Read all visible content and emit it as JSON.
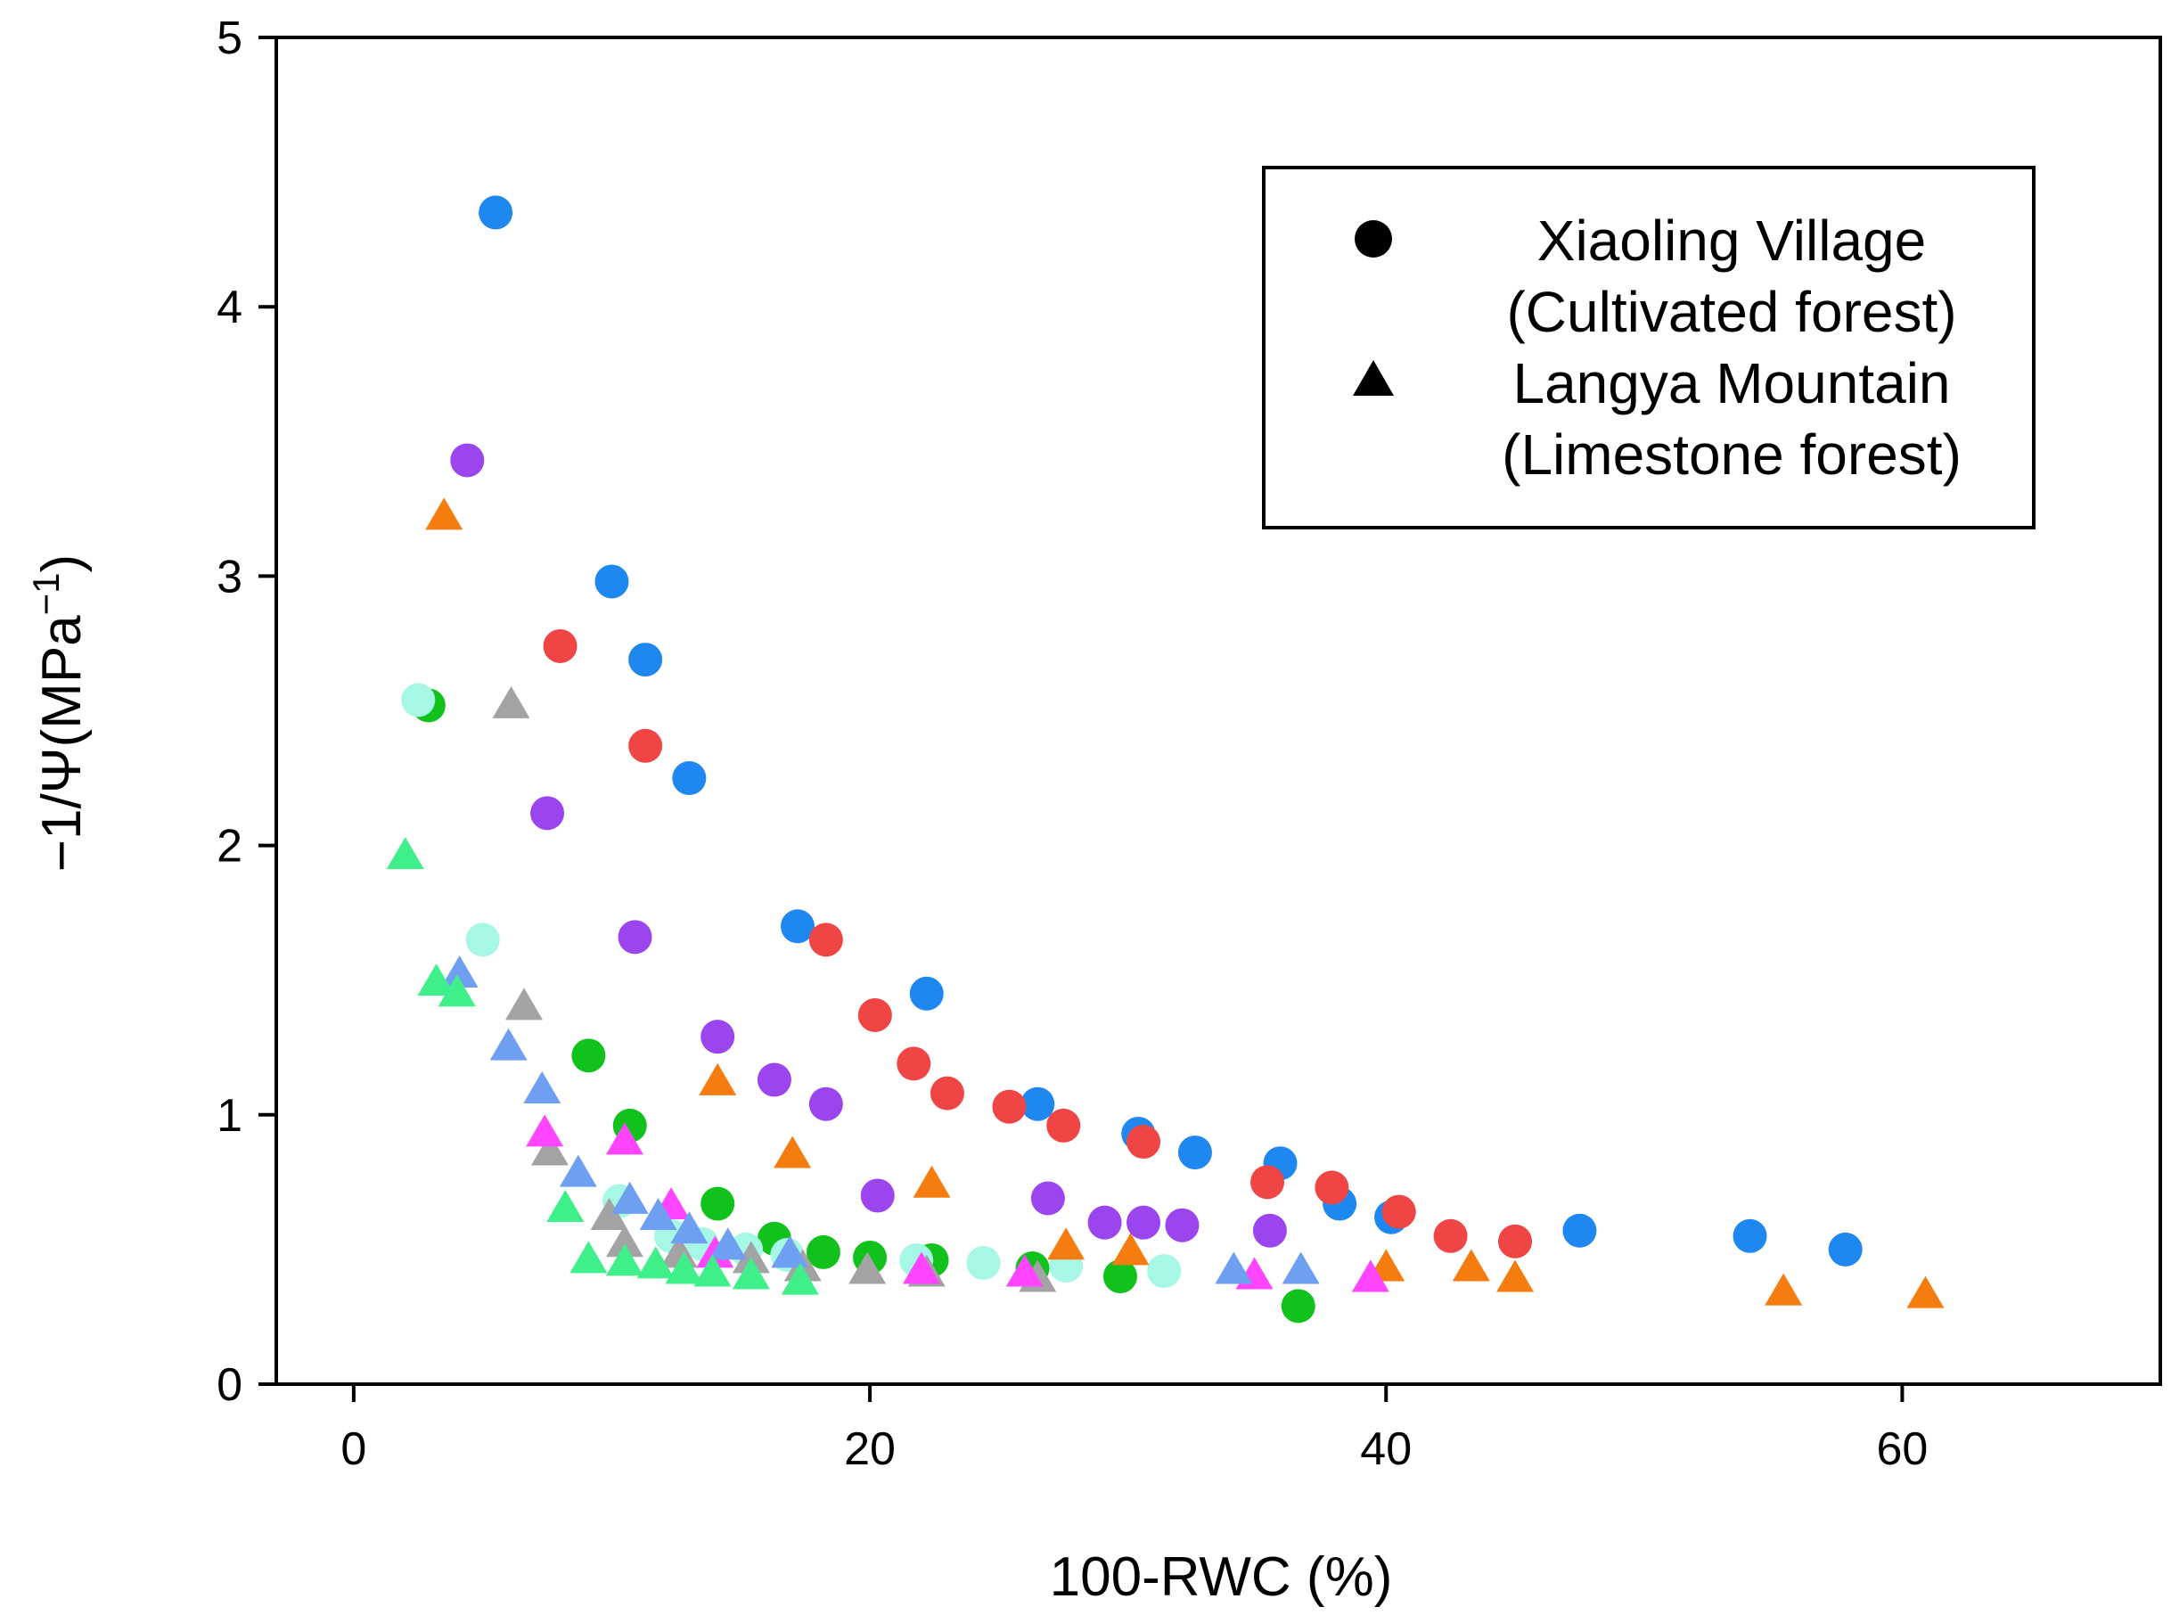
{
  "chart_data": {
    "type": "scatter",
    "xlabel": "100-RWC (%)",
    "ylabel": "−1/Ψ(MPa",
    "ylabel_sup": "−1",
    "ylabel_close": ")",
    "xlim": [
      -3,
      70
    ],
    "ylim": [
      0,
      5
    ],
    "xticks": [
      0,
      20,
      40,
      60
    ],
    "yticks": [
      0,
      1,
      2,
      3,
      4,
      5
    ],
    "grid": false,
    "legend": {
      "position": "top-right",
      "entries": [
        {
          "marker": "circle",
          "line1": "Xiaoling Village",
          "line2": "(Cultivated forest)"
        },
        {
          "marker": "triangle",
          "line1": "Langya Mountain",
          "line2": "(Limestone forest)"
        }
      ]
    },
    "series": [
      {
        "name": "Xiaoling Village blue",
        "site": "Xiaoling Village",
        "marker": "circle",
        "color": "#1e88f0",
        "x": [
          5.5,
          10.0,
          11.3,
          13.0,
          17.2,
          22.2,
          26.5,
          30.4,
          32.6,
          35.9,
          38.2,
          40.2,
          47.5,
          54.1,
          57.8
        ],
        "y": [
          4.35,
          2.98,
          2.69,
          2.25,
          1.7,
          1.45,
          1.04,
          0.93,
          0.86,
          0.82,
          0.67,
          0.62,
          0.57,
          0.55,
          0.5
        ]
      },
      {
        "name": "Xiaoling Village red",
        "site": "Xiaoling Village",
        "marker": "circle",
        "color": "#f04545",
        "x": [
          8.0,
          11.3,
          18.3,
          20.2,
          21.7,
          23.0,
          25.4,
          27.5,
          30.6,
          35.4,
          37.9,
          40.5,
          42.5,
          45.0
        ],
        "y": [
          2.74,
          2.37,
          1.65,
          1.37,
          1.19,
          1.08,
          1.03,
          0.96,
          0.9,
          0.75,
          0.73,
          0.64,
          0.55,
          0.53
        ]
      },
      {
        "name": "Xiaoling Village purple",
        "site": "Xiaoling Village",
        "marker": "circle",
        "color": "#9b45ee",
        "x": [
          4.4,
          7.5,
          10.9,
          14.1,
          16.3,
          18.3,
          20.3,
          26.9,
          29.1,
          30.6,
          32.1,
          35.5
        ],
        "y": [
          3.43,
          2.12,
          1.66,
          1.29,
          1.13,
          1.04,
          0.7,
          0.69,
          0.6,
          0.6,
          0.59,
          0.57
        ]
      },
      {
        "name": "Xiaoling Village green",
        "site": "Xiaoling Village",
        "marker": "circle",
        "color": "#12c21c",
        "x": [
          2.9,
          9.1,
          10.7,
          14.1,
          16.3,
          18.2,
          20.0,
          22.4,
          26.3,
          29.7,
          36.6
        ],
        "y": [
          2.52,
          1.22,
          0.96,
          0.67,
          0.54,
          0.49,
          0.47,
          0.46,
          0.43,
          0.4,
          0.29
        ]
      },
      {
        "name": "Xiaoling Village aqua",
        "site": "Xiaoling Village",
        "marker": "circle",
        "color": "#a6f7e6",
        "x": [
          2.5,
          5.0,
          10.3,
          12.3,
          13.5,
          15.2,
          16.8,
          21.8,
          24.4,
          27.6,
          31.4
        ],
        "y": [
          2.54,
          1.65,
          0.68,
          0.55,
          0.52,
          0.5,
          0.48,
          0.46,
          0.45,
          0.44,
          0.42
        ]
      },
      {
        "name": "Langya Mountain orange",
        "site": "Langya Mountain",
        "marker": "triangle",
        "color": "#f57d0f",
        "x": [
          3.5,
          14.1,
          17.0,
          22.4,
          27.6,
          30.1,
          40.0,
          43.3,
          45.0,
          55.4,
          60.9
        ],
        "y": [
          3.22,
          1.12,
          0.85,
          0.74,
          0.51,
          0.49,
          0.43,
          0.43,
          0.39,
          0.34,
          0.33
        ]
      },
      {
        "name": "Langya Mountain gray",
        "site": "Langya Mountain",
        "marker": "triangle",
        "color": "#a3a3a3",
        "x": [
          6.1,
          6.6,
          7.6,
          9.9,
          10.5,
          12.6,
          15.4,
          17.4,
          19.9,
          22.2,
          26.5
        ],
        "y": [
          2.52,
          1.4,
          0.86,
          0.62,
          0.52,
          0.48,
          0.46,
          0.43,
          0.42,
          0.41,
          0.39
        ]
      },
      {
        "name": "Langya Mountain magenta",
        "site": "Langya Mountain",
        "marker": "triangle",
        "color": "#ff45ff",
        "x": [
          7.4,
          10.5,
          12.3,
          14.0,
          22.0,
          26.0,
          34.9,
          39.4
        ],
        "y": [
          0.93,
          0.9,
          0.66,
          0.48,
          0.42,
          0.41,
          0.4,
          0.39
        ]
      },
      {
        "name": "Langya Mountain light blue",
        "site": "Langya Mountain",
        "marker": "triangle",
        "color": "#6f9ff0",
        "x": [
          4.1,
          6.0,
          7.3,
          8.7,
          10.7,
          11.8,
          13.0,
          14.5,
          16.9,
          34.1,
          36.7
        ],
        "y": [
          1.52,
          1.25,
          1.09,
          0.78,
          0.68,
          0.62,
          0.57,
          0.51,
          0.48,
          0.42,
          0.42
        ]
      },
      {
        "name": "Langya Mountain mint",
        "site": "Langya Mountain",
        "marker": "triangle",
        "color": "#3ff08a",
        "x": [
          2.0,
          3.2,
          4.0,
          8.2,
          9.1,
          10.5,
          11.7,
          12.8,
          13.9,
          15.4,
          17.3
        ],
        "y": [
          1.96,
          1.49,
          1.45,
          0.65,
          0.46,
          0.45,
          0.44,
          0.42,
          0.41,
          0.4,
          0.38
        ]
      }
    ]
  }
}
